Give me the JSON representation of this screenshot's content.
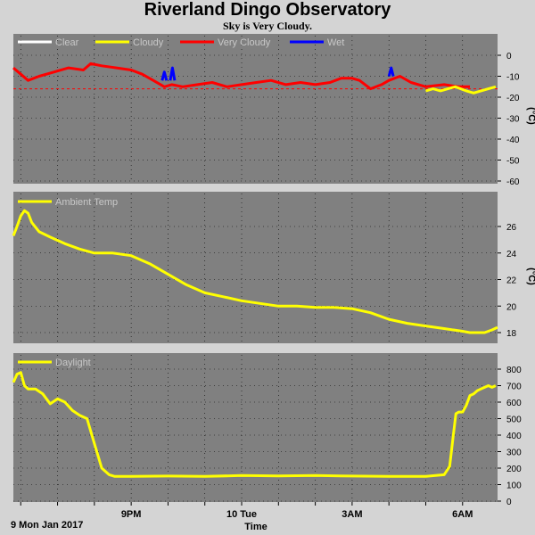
{
  "title": "Riverland Dingo Observatory",
  "subtitle": "Sky is Very Cloudy.",
  "colors": {
    "panel": "#808080",
    "page": "#d4d4d4",
    "clear": "#ffffff",
    "cloudy": "#ffff00",
    "very_cloudy": "#ff0000",
    "wet": "#0000ff",
    "temp": "#ffff00",
    "daylight": "#ffff00"
  },
  "x_axis": {
    "label": "Time",
    "date_label": "9 Mon Jan 2017",
    "tick_labels": [
      "9PM",
      "10 Tue",
      "3AM",
      "6AM"
    ],
    "tick_hours": [
      21,
      24,
      27,
      30
    ],
    "range_hours": [
      17.8,
      30.95
    ]
  },
  "chart_data": [
    {
      "type": "line",
      "name": "sky",
      "legend": [
        "Clear",
        "Cloudy",
        "Very Cloudy",
        "Wet"
      ],
      "ylabel": "(°C)",
      "yticks": [
        0,
        -10,
        -20,
        -30,
        -40,
        -50,
        -60
      ],
      "ylim": [
        -60,
        5
      ],
      "threshold_line": -16,
      "series": [
        {
          "name": "Very Cloudy",
          "color": "#ff0000",
          "x": [
            17.8,
            18.0,
            18.2,
            18.5,
            18.9,
            19.3,
            19.7,
            19.9,
            20.2,
            20.6,
            21.0,
            21.3,
            21.6,
            21.9,
            22.1,
            22.4,
            22.8,
            23.2,
            23.6,
            24.0,
            24.4,
            24.8,
            25.2,
            25.6,
            26.0,
            26.4,
            26.7,
            27.0,
            27.2,
            27.5,
            27.8,
            28.0,
            28.3,
            28.6,
            29.0,
            29.5,
            29.9,
            30.2
          ],
          "y": [
            -6,
            -9,
            -12,
            -10,
            -8,
            -6,
            -7,
            -4,
            -5,
            -6,
            -7,
            -9,
            -12,
            -15,
            -14,
            -15,
            -14,
            -13,
            -15,
            -14,
            -13,
            -12,
            -14,
            -13,
            -14,
            -13,
            -11,
            -11,
            -12,
            -16,
            -14,
            -12,
            -10,
            -13,
            -15,
            -14,
            -15,
            -15
          ]
        },
        {
          "name": "Cloudy",
          "color": "#ffff00",
          "x": [
            29.0,
            29.2,
            29.4,
            29.6,
            29.8,
            30.1,
            30.3,
            30.5,
            30.7,
            30.9
          ],
          "y": [
            -17,
            -16,
            -17,
            -16,
            -15,
            -17,
            -18,
            -17,
            -16,
            -15
          ]
        },
        {
          "name": "Wet",
          "color": "#0000ff",
          "x": [
            21.84,
            21.9,
            21.96,
            22.06,
            22.12,
            22.18,
            28.0,
            28.06,
            28.12
          ],
          "y": [
            -12,
            -8,
            -12,
            -12,
            -6,
            -12,
            -10,
            -6,
            -10
          ]
        }
      ]
    },
    {
      "type": "line",
      "name": "temperature",
      "legend": [
        "Ambient Temp"
      ],
      "ylabel": "(°C)",
      "yticks": [
        18,
        20,
        22,
        24,
        26
      ],
      "ylim": [
        17.3,
        27.5
      ],
      "series": [
        {
          "name": "Ambient Temp",
          "color": "#ffff00",
          "x": [
            17.8,
            17.9,
            18.0,
            18.1,
            18.2,
            18.3,
            18.5,
            18.8,
            19.2,
            19.6,
            20.0,
            20.5,
            21.0,
            21.5,
            22.0,
            22.5,
            23.0,
            23.5,
            24.0,
            24.5,
            25.0,
            25.5,
            26.0,
            26.5,
            27.0,
            27.5,
            28.0,
            28.5,
            29.0,
            29.5,
            30.0,
            30.2,
            30.4,
            30.6,
            30.8,
            30.95
          ],
          "y": [
            25.3,
            26.0,
            26.8,
            27.2,
            27.0,
            26.3,
            25.6,
            25.2,
            24.7,
            24.3,
            24.0,
            24.0,
            23.8,
            23.2,
            22.4,
            21.6,
            21.0,
            20.7,
            20.4,
            20.2,
            20.0,
            20.0,
            19.9,
            19.9,
            19.8,
            19.5,
            19.0,
            18.7,
            18.5,
            18.3,
            18.1,
            18.0,
            18.0,
            18.0,
            18.2,
            18.4
          ]
        }
      ]
    },
    {
      "type": "line",
      "name": "daylight",
      "legend": [
        "Daylight"
      ],
      "ylabel": "",
      "yticks": [
        0,
        100,
        200,
        300,
        400,
        500,
        600,
        700,
        800
      ],
      "ylim": [
        0,
        800
      ],
      "series": [
        {
          "name": "Daylight",
          "color": "#ffff00",
          "x": [
            17.8,
            17.9,
            18.0,
            18.1,
            18.2,
            18.4,
            18.6,
            18.8,
            19.0,
            19.2,
            19.4,
            19.6,
            19.8,
            20.0,
            20.2,
            20.4,
            20.55,
            20.7,
            20.8,
            21.0,
            22.0,
            23.0,
            24.0,
            25.0,
            26.0,
            27.0,
            28.0,
            29.0,
            29.5,
            29.65,
            29.75,
            29.82,
            29.9,
            30.0,
            30.1,
            30.2,
            30.3,
            30.4,
            30.5,
            30.6,
            30.7,
            30.8,
            30.9
          ],
          "y": [
            720,
            770,
            780,
            700,
            680,
            680,
            650,
            590,
            620,
            600,
            550,
            520,
            500,
            350,
            200,
            160,
            150,
            150,
            150,
            150,
            152,
            150,
            155,
            153,
            155,
            152,
            150,
            150,
            160,
            210,
            400,
            530,
            540,
            540,
            580,
            640,
            650,
            670,
            680,
            690,
            700,
            690,
            700
          ]
        }
      ]
    }
  ]
}
